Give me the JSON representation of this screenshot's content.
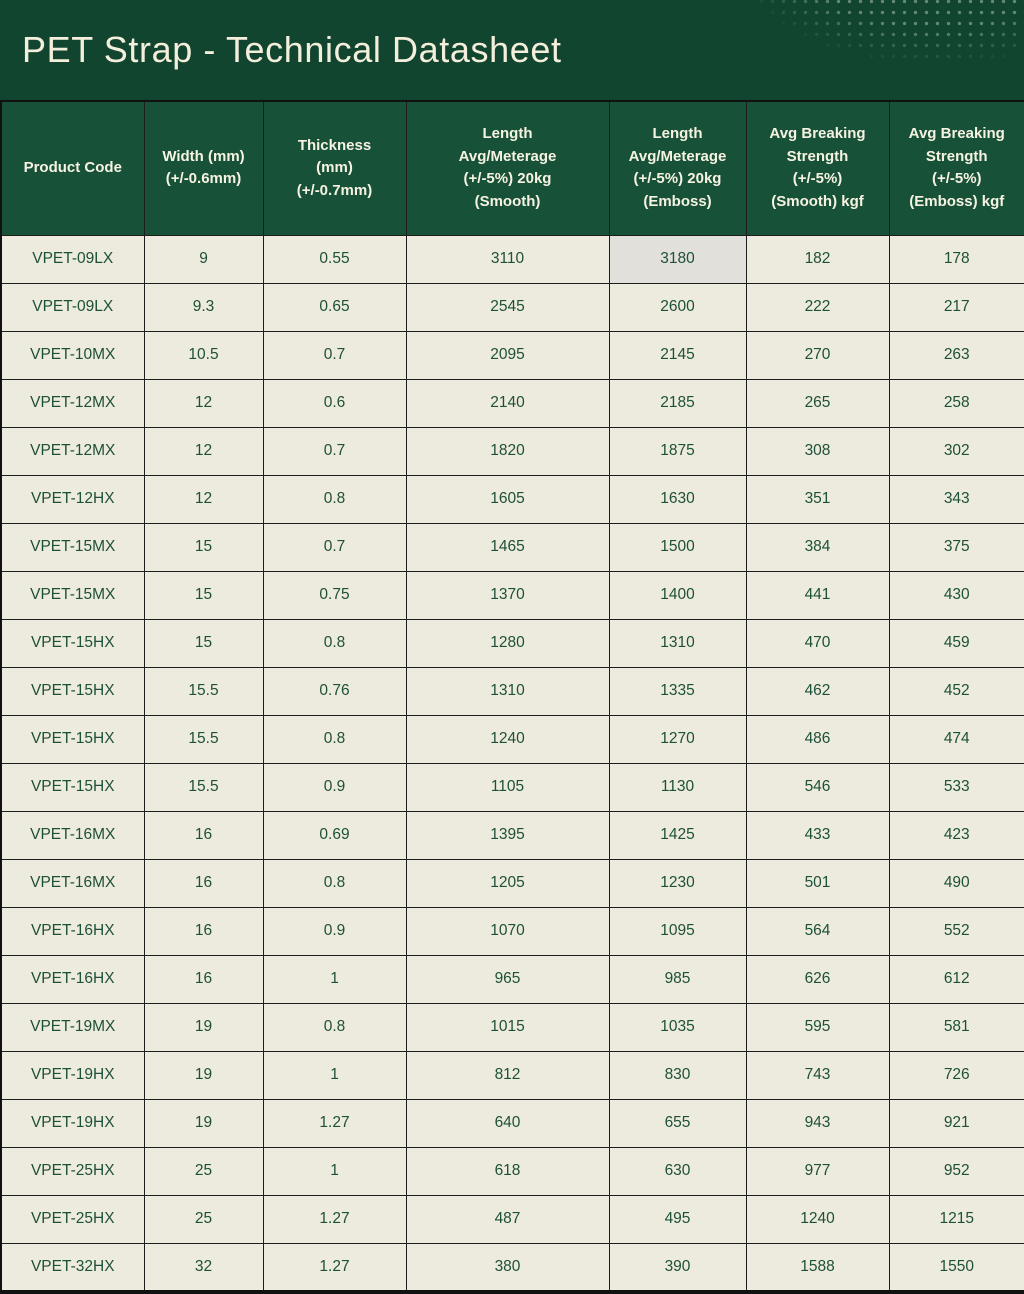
{
  "page": {
    "title": "PET Strap - Technical Datasheet"
  },
  "theme": {
    "banner_bg": "#12452f",
    "header_cell_bg": "#175138",
    "header_text": "#f7f3e3",
    "body_cell_bg": "#edebdd",
    "body_text": "#1d5038",
    "grid_border": "#1d1d1d",
    "highlight_cell_bg": "#e2e0da",
    "dots_decoration": "#ebf5ee"
  },
  "decorations": {
    "dots_icon": "halftone-dot-pattern"
  },
  "table": {
    "columns": [
      "Product Code",
      "Width (mm)\n(+/-0.6mm)",
      "Thickness\n(mm)\n(+/-0.7mm)",
      "Length\nAvg/Meterage\n(+/-5%) 20kg\n(Smooth)",
      "Length\nAvg/Meterage\n(+/-5%) 20kg\n(Emboss)",
      "Avg Breaking\nStrength\n(+/-5%)\n(Smooth) kgf",
      "Avg Breaking\nStrength\n(+/-5%)\n(Emboss) kgf"
    ],
    "rows": [
      [
        "VPET-09LX",
        "9",
        "0.55",
        "3110",
        "3180",
        "182",
        "178"
      ],
      [
        "VPET-09LX",
        "9.3",
        "0.65",
        "2545",
        "2600",
        "222",
        "217"
      ],
      [
        "VPET-10MX",
        "10.5",
        "0.7",
        "2095",
        "2145",
        "270",
        "263"
      ],
      [
        "VPET-12MX",
        "12",
        "0.6",
        "2140",
        "2185",
        "265",
        "258"
      ],
      [
        "VPET-12MX",
        "12",
        "0.7",
        "1820",
        "1875",
        "308",
        "302"
      ],
      [
        "VPET-12HX",
        "12",
        "0.8",
        "1605",
        "1630",
        "351",
        "343"
      ],
      [
        "VPET-15MX",
        "15",
        "0.7",
        "1465",
        "1500",
        "384",
        "375"
      ],
      [
        "VPET-15MX",
        "15",
        "0.75",
        "1370",
        "1400",
        "441",
        "430"
      ],
      [
        "VPET-15HX",
        "15",
        "0.8",
        "1280",
        "1310",
        "470",
        "459"
      ],
      [
        "VPET-15HX",
        "15.5",
        "0.76",
        "1310",
        "1335",
        "462",
        "452"
      ],
      [
        "VPET-15HX",
        "15.5",
        "0.8",
        "1240",
        "1270",
        "486",
        "474"
      ],
      [
        "VPET-15HX",
        "15.5",
        "0.9",
        "1105",
        "1130",
        "546",
        "533"
      ],
      [
        "VPET-16MX",
        "16",
        "0.69",
        "1395",
        "1425",
        "433",
        "423"
      ],
      [
        "VPET-16MX",
        "16",
        "0.8",
        "1205",
        "1230",
        "501",
        "490"
      ],
      [
        "VPET-16HX",
        "16",
        "0.9",
        "1070",
        "1095",
        "564",
        "552"
      ],
      [
        "VPET-16HX",
        "16",
        "1",
        "965",
        "985",
        "626",
        "612"
      ],
      [
        "VPET-19MX",
        "19",
        "0.8",
        "1015",
        "1035",
        "595",
        "581"
      ],
      [
        "VPET-19HX",
        "19",
        "1",
        "812",
        "830",
        "743",
        "726"
      ],
      [
        "VPET-19HX",
        "19",
        "1.27",
        "640",
        "655",
        "943",
        "921"
      ],
      [
        "VPET-25HX",
        "25",
        "1",
        "618",
        "630",
        "977",
        "952"
      ],
      [
        "VPET-25HX",
        "25",
        "1.27",
        "487",
        "495",
        "1240",
        "1215"
      ],
      [
        "VPET-32HX",
        "32",
        "1.27",
        "380",
        "390",
        "1588",
        "1550"
      ]
    ],
    "highlight_cell": {
      "row": 0,
      "col": 4
    }
  }
}
